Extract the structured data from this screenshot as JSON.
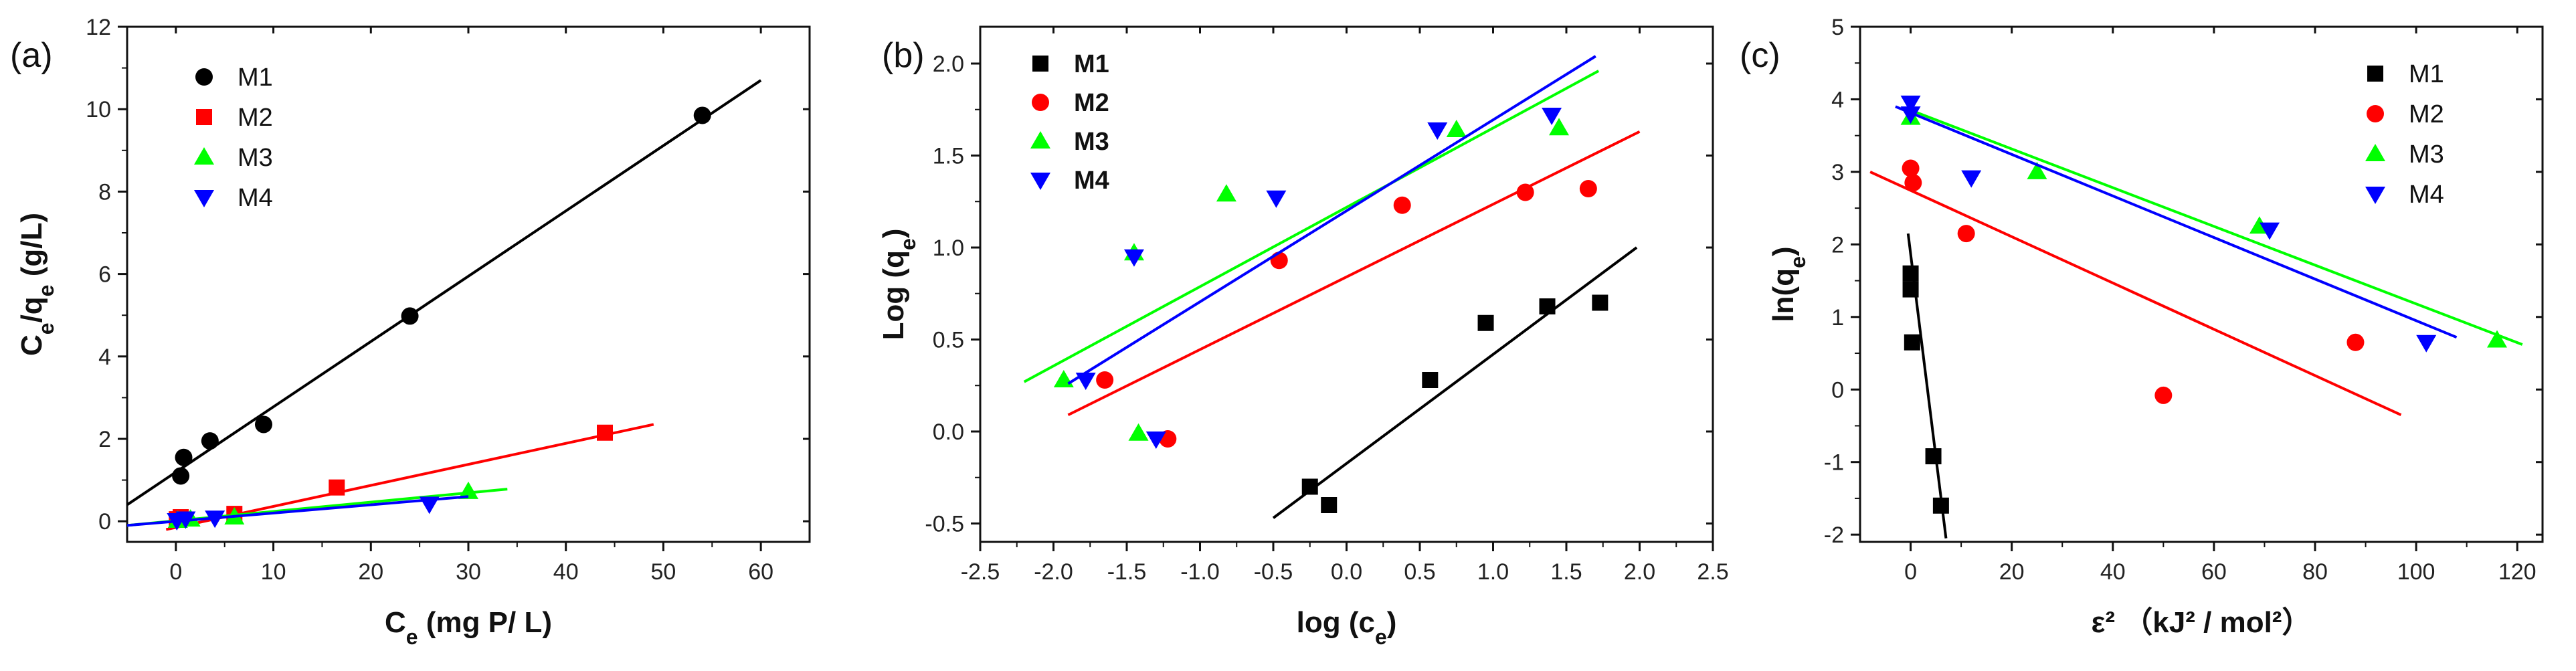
{
  "chart_data": [
    {
      "type": "scatter",
      "panel_label": "(a)",
      "xlabel_main": "C",
      "xlabel_sub": "e",
      "xlabel_rest": " (mg P/ L)",
      "ylabel_parts": [
        "C",
        "e",
        "/q",
        "e",
        "  (g/L)"
      ],
      "xlim": [
        -5,
        65
      ],
      "ylim": [
        -0.5,
        12
      ],
      "xticks": [
        0,
        10,
        20,
        30,
        40,
        50,
        60
      ],
      "yticks": [
        0,
        2,
        4,
        6,
        8,
        10,
        12
      ],
      "legend_position": "top-left",
      "legend_bold": false,
      "series": [
        {
          "name": "M1",
          "color": "#000000",
          "marker": "circle",
          "x": [
            0.5,
            0.8,
            3.5,
            9,
            24,
            54
          ],
          "y": [
            1.1,
            1.55,
            1.95,
            2.35,
            4.98,
            9.85
          ],
          "fit_x": [
            -5,
            60
          ],
          "fit_y": [
            0.4,
            10.7
          ]
        },
        {
          "name": "M2",
          "color": "#ff0000",
          "marker": "square",
          "x": [
            0.1,
            0.5,
            6,
            16.5,
            44
          ],
          "y": [
            0.05,
            0.1,
            0.18,
            0.82,
            2.15
          ],
          "fit_x": [
            -1,
            49
          ],
          "fit_y": [
            -0.2,
            2.35
          ]
        },
        {
          "name": "M3",
          "color": "#00ff00",
          "marker": "triangle-up",
          "x": [
            0.2,
            1.5,
            6,
            30
          ],
          "y": [
            0.02,
            0.05,
            0.1,
            0.72
          ],
          "fit_x": [
            -5,
            34
          ],
          "fit_y": [
            -0.1,
            0.78
          ]
        },
        {
          "name": "M4",
          "color": "#0000ff",
          "marker": "triangle-down",
          "x": [
            0.1,
            1.0,
            4,
            26
          ],
          "y": [
            0.02,
            0.06,
            0.08,
            0.42
          ],
          "fit_x": [
            -5,
            30
          ],
          "fit_y": [
            -0.1,
            0.6
          ]
        }
      ]
    },
    {
      "type": "scatter",
      "panel_label": "(b)",
      "xlabel_main": "log (c",
      "xlabel_sub": "e",
      "xlabel_rest": ")",
      "ylabel_parts": [
        "Log (q",
        "e",
        ")"
      ],
      "xlim": [
        -2.5,
        2.5
      ],
      "ylim": [
        -0.6,
        2.2
      ],
      "xticks": [
        -2.5,
        -2.0,
        -1.5,
        -1.0,
        -0.5,
        0.0,
        0.5,
        1.0,
        1.5,
        2.0,
        2.5
      ],
      "yticks": [
        -0.5,
        0.0,
        0.5,
        1.0,
        1.5,
        2.0
      ],
      "legend_position": "top-left",
      "legend_bold": true,
      "series": [
        {
          "name": "M1",
          "color": "#000000",
          "marker": "square",
          "x": [
            -0.25,
            -0.12,
            0.57,
            0.95,
            1.37,
            1.73
          ],
          "y": [
            -0.3,
            -0.4,
            0.28,
            0.59,
            0.68,
            0.7
          ],
          "fit_x": [
            -0.5,
            1.98
          ],
          "fit_y": [
            -0.47,
            1.0
          ]
        },
        {
          "name": "M2",
          "color": "#ff0000",
          "marker": "circle",
          "x": [
            -1.65,
            -1.22,
            -0.46,
            0.38,
            1.22,
            1.65
          ],
          "y": [
            0.28,
            -0.04,
            0.93,
            1.23,
            1.3,
            1.32
          ],
          "fit_x": [
            -1.9,
            2.0
          ],
          "fit_y": [
            0.09,
            1.63
          ]
        },
        {
          "name": "M3",
          "color": "#00ff00",
          "marker": "triangle-up",
          "x": [
            -1.93,
            -1.45,
            -1.42,
            -0.82,
            0.75,
            1.45
          ],
          "y": [
            0.28,
            0.97,
            -0.01,
            1.29,
            1.64,
            1.65
          ],
          "fit_x": [
            -2.2,
            1.72
          ],
          "fit_y": [
            0.27,
            1.96
          ]
        },
        {
          "name": "M4",
          "color": "#0000ff",
          "marker": "triangle-down",
          "x": [
            -1.78,
            -1.45,
            -1.3,
            -0.48,
            0.62,
            1.4
          ],
          "y": [
            0.28,
            0.95,
            -0.04,
            1.27,
            1.64,
            1.72
          ],
          "fit_x": [
            -1.9,
            1.7
          ],
          "fit_y": [
            0.26,
            2.04
          ]
        }
      ]
    },
    {
      "type": "scatter",
      "panel_label": "(c)",
      "xlabel_main": "ε²  （kJ² / mol²）",
      "ylabel_parts": [
        "ln(q",
        "e",
        ")"
      ],
      "xlim": [
        -10,
        125
      ],
      "ylim": [
        -2.1,
        5
      ],
      "xticks": [
        0,
        20,
        40,
        60,
        80,
        100,
        120
      ],
      "yticks": [
        -2,
        -1,
        0,
        1,
        2,
        3,
        4,
        5
      ],
      "legend_position": "top-right",
      "legend_bold": false,
      "series": [
        {
          "name": "M1",
          "color": "#000000",
          "marker": "square",
          "x": [
            0,
            0,
            0.3,
            4.5,
            6
          ],
          "y": [
            1.6,
            1.38,
            0.65,
            -0.92,
            -1.6
          ],
          "fit_x": [
            -0.5,
            7
          ],
          "fit_y": [
            2.15,
            -2.05
          ]
        },
        {
          "name": "M2",
          "color": "#ff0000",
          "marker": "circle",
          "x": [
            0,
            0.5,
            11,
            50,
            88
          ],
          "y": [
            3.05,
            2.85,
            2.15,
            -0.08,
            0.65
          ],
          "fit_x": [
            -8,
            97
          ],
          "fit_y": [
            3.0,
            -0.35
          ]
        },
        {
          "name": "M3",
          "color": "#00ff00",
          "marker": "triangle-up",
          "x": [
            0,
            25,
            69,
            116
          ],
          "y": [
            3.75,
            3.0,
            2.25,
            0.68
          ],
          "fit_x": [
            0,
            121
          ],
          "fit_y": [
            3.85,
            0.62
          ]
        },
        {
          "name": "M4",
          "color": "#0000ff",
          "marker": "triangle-down",
          "x": [
            0,
            0,
            12,
            71,
            102
          ],
          "y": [
            3.95,
            3.8,
            2.92,
            2.2,
            0.65
          ],
          "fit_x": [
            -3,
            108
          ],
          "fit_y": [
            3.9,
            0.72
          ]
        }
      ]
    }
  ]
}
